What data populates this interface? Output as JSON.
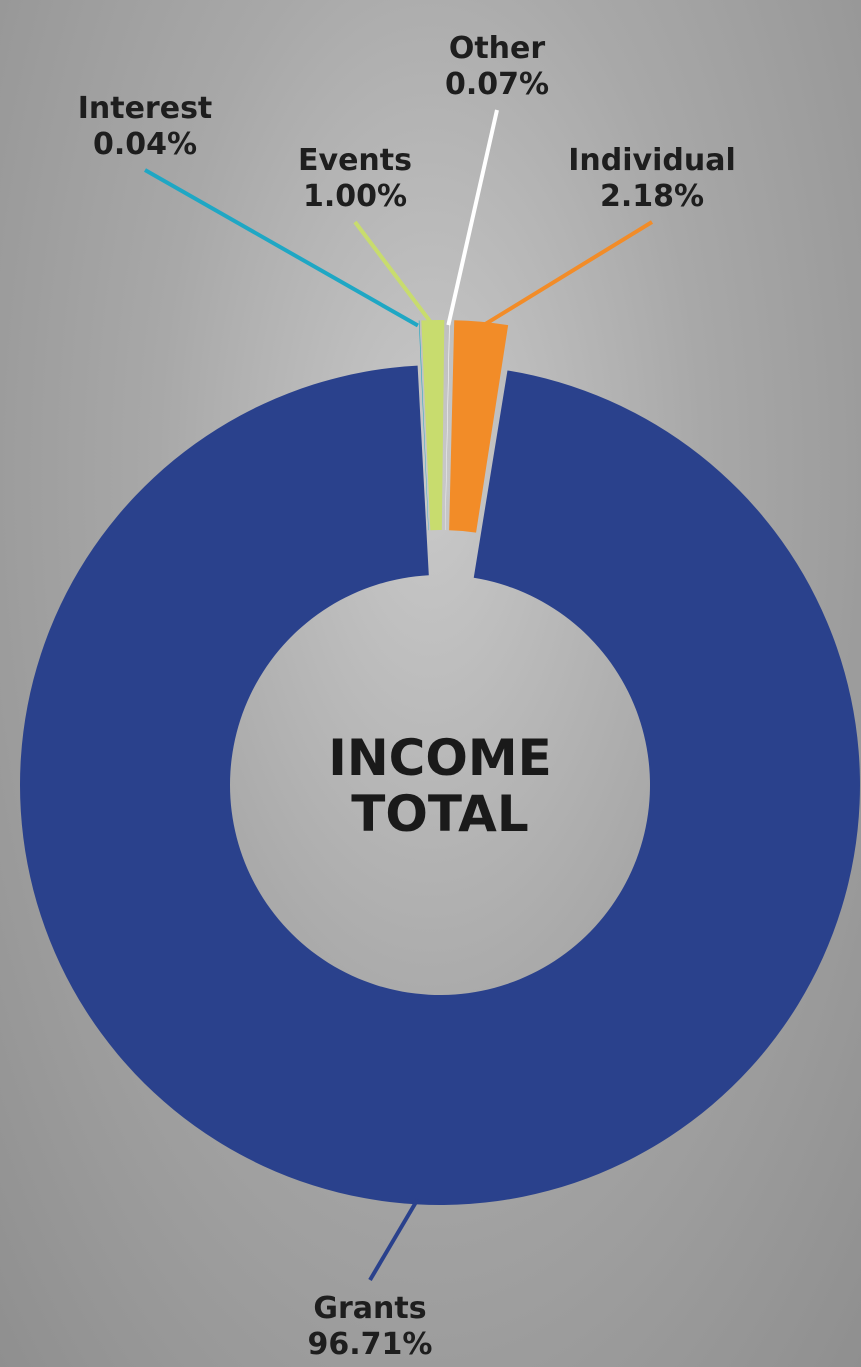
{
  "chart_data": {
    "type": "donut",
    "center_text": "INCOME TOTAL",
    "categories": [
      "Individual",
      "Grants",
      "Interest",
      "Events",
      "Other"
    ],
    "values": [
      2.18,
      96.71,
      0.04,
      1.0,
      0.07
    ],
    "value_labels": [
      "2.18%",
      "96.71%",
      "0.04%",
      "1.00%",
      "0.07%"
    ],
    "colors": [
      "#f28c28",
      "#2a418c",
      "#1fa7c4",
      "#c8dc6e",
      "#ffffff"
    ]
  }
}
